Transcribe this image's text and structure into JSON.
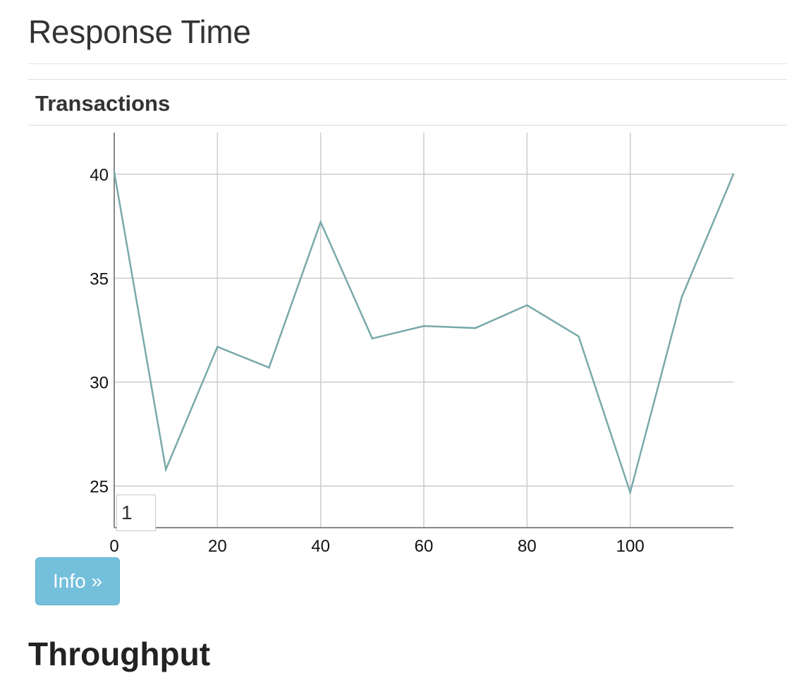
{
  "page": {
    "title": "Response Time",
    "next_section_title": "Throughput"
  },
  "panel": {
    "title": "Transactions"
  },
  "roller": {
    "value": "1"
  },
  "buttons": {
    "info_label": "Info »"
  },
  "colors": {
    "line": "#79a9aa",
    "grid": "#cccccc",
    "axis": "#888888",
    "info_button": "#74bfdc"
  },
  "chart_data": {
    "type": "line",
    "title": "",
    "xlabel": "",
    "ylabel": "",
    "xlim": [
      0,
      120
    ],
    "ylim": [
      23,
      42
    ],
    "x_ticks": [
      0,
      20,
      40,
      60,
      80,
      100
    ],
    "y_ticks": [
      25,
      30,
      35,
      40
    ],
    "grid": true,
    "series": [
      {
        "x": [
          0,
          10,
          20,
          30,
          40,
          50,
          60,
          70,
          80,
          90,
          100,
          110,
          120
        ],
        "values": [
          40.1,
          25.8,
          31.7,
          30.7,
          37.7,
          32.1,
          32.7,
          32.6,
          33.7,
          32.2,
          24.7,
          34.1,
          40.0
        ]
      }
    ]
  }
}
